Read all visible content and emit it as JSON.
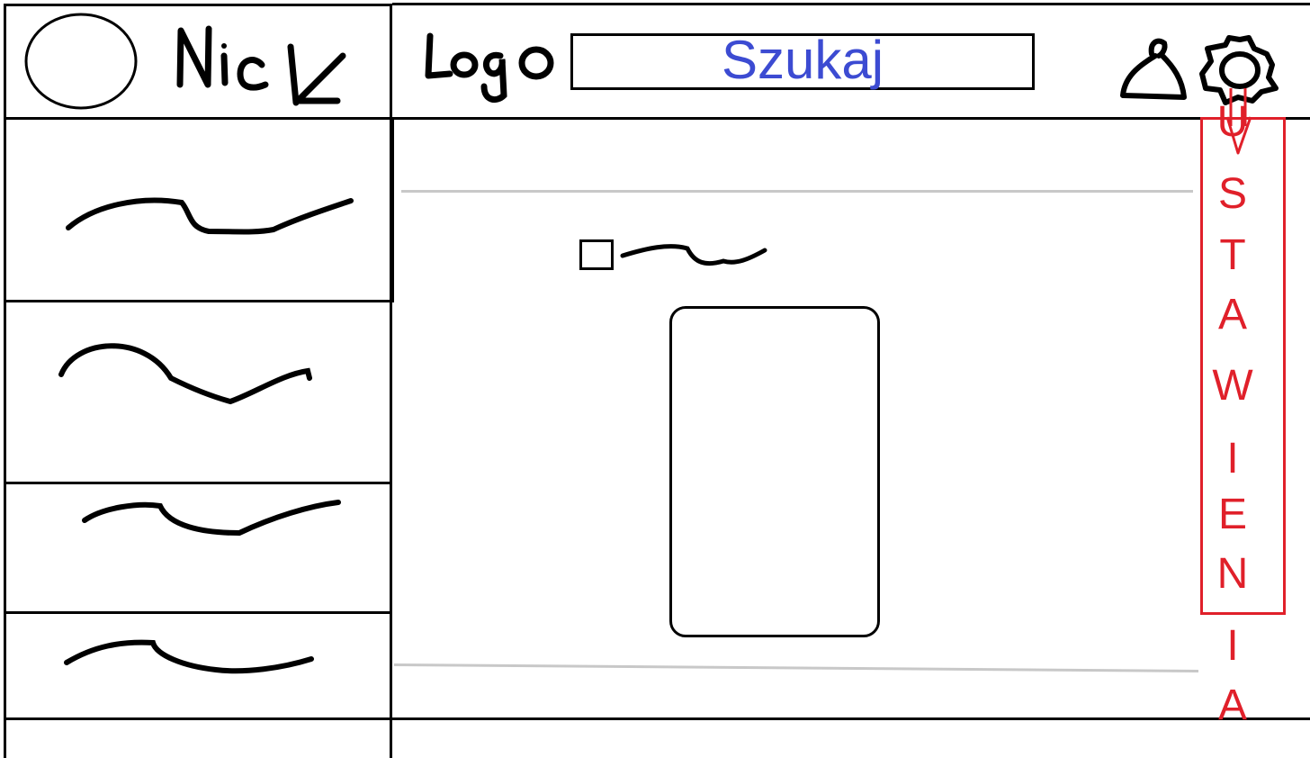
{
  "colors": {
    "search_text": "#3c4bd2",
    "settings": "#e0202a",
    "frame": "#000000",
    "divider": "#c8c8c8"
  },
  "profile": {
    "nick": "Nick",
    "avatar_icon": "avatar-circle-icon"
  },
  "header": {
    "logo": "Logo",
    "search_label": "Szukaj",
    "icons": [
      "user-icon",
      "gear-icon"
    ]
  },
  "settings_panel": {
    "letters": [
      "U",
      "S",
      "T",
      "A",
      "W",
      "I",
      "E",
      "N",
      "I",
      "A"
    ]
  }
}
